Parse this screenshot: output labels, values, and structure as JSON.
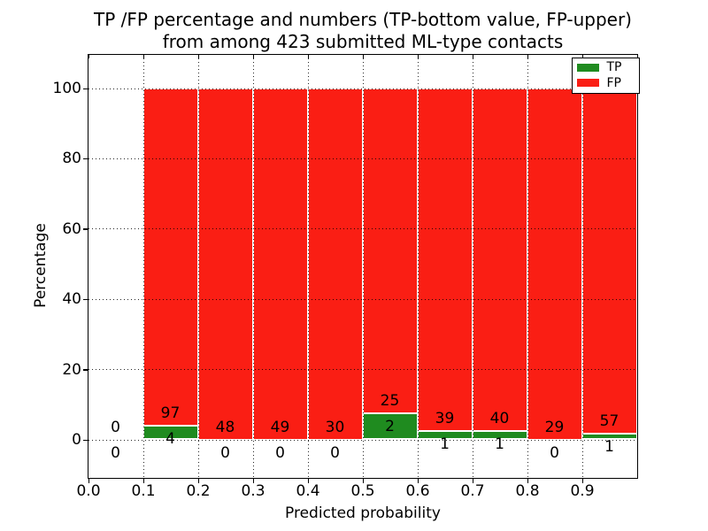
{
  "title": {
    "line1": "TP /FP percentage and numbers (TP-bottom value, FP-upper)",
    "line2": "from among 423 submitted ML-type contacts"
  },
  "axes": {
    "xlabel": "Predicted probability",
    "ylabel": "Percentage"
  },
  "chart_data": {
    "type": "bar",
    "stacked": true,
    "normalized": "each bin stacked to 100%",
    "title": "TP /FP percentage and numbers (TP-bottom value, FP-upper) from among 423 submitted ML-type contacts",
    "xlabel": "Predicted probability",
    "ylabel": "Percentage",
    "total_contacts": 423,
    "xlim": [
      0.0,
      1.0
    ],
    "ylim_shown": [
      -11,
      110
    ],
    "grid": "dotted",
    "legend_position": "upper right",
    "xticks": [
      "0.0",
      "0.1",
      "0.2",
      "0.3",
      "0.4",
      "0.5",
      "0.6",
      "0.7",
      "0.8",
      "0.9"
    ],
    "yticks": [
      0,
      20,
      40,
      60,
      80,
      100
    ],
    "bin_width": 0.1,
    "bins": [
      {
        "x0": 0.0,
        "x1": 0.1,
        "tp": 0,
        "fp": 0
      },
      {
        "x0": 0.1,
        "x1": 0.2,
        "tp": 4,
        "fp": 97
      },
      {
        "x0": 0.2,
        "x1": 0.3,
        "tp": 0,
        "fp": 48
      },
      {
        "x0": 0.3,
        "x1": 0.4,
        "tp": 0,
        "fp": 49
      },
      {
        "x0": 0.4,
        "x1": 0.5,
        "tp": 0,
        "fp": 30
      },
      {
        "x0": 0.5,
        "x1": 0.6,
        "tp": 2,
        "fp": 25
      },
      {
        "x0": 0.6,
        "x1": 0.7,
        "tp": 1,
        "fp": 39
      },
      {
        "x0": 0.7,
        "x1": 0.8,
        "tp": 1,
        "fp": 40
      },
      {
        "x0": 0.8,
        "x1": 0.9,
        "tp": 0,
        "fp": 29
      },
      {
        "x0": 0.9,
        "x1": 1.0,
        "tp": 1,
        "fp": 57
      }
    ],
    "legend": {
      "entries": [
        {
          "label": "TP",
          "color": "#1f8b1f"
        },
        {
          "label": "FP",
          "color": "#fa1e14"
        }
      ]
    },
    "colors": {
      "tp": "#1f8b1f",
      "fp": "#fa1e14"
    }
  }
}
